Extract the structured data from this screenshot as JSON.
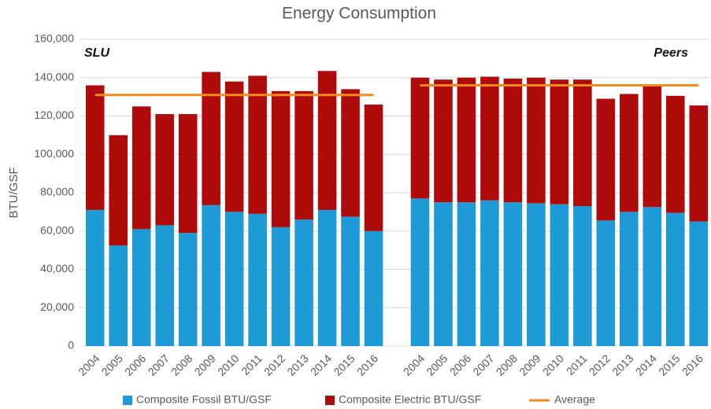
{
  "chart_data": {
    "type": "bar",
    "stacked": true,
    "title": "Energy Consumption",
    "y_label": "BTU/GSF",
    "group_labels": [
      "SLU",
      "Peers"
    ],
    "categories": [
      "2004",
      "2005",
      "2006",
      "2007",
      "2008",
      "2009",
      "2010",
      "2011",
      "2012",
      "2013",
      "2014",
      "2015",
      "2016",
      null,
      "2004",
      "2005",
      "2006",
      "2007",
      "2008",
      "2009",
      "2010",
      "2011",
      "2012",
      "2013",
      "2014",
      "2015",
      "2016"
    ],
    "series": [
      {
        "name": "Composite Fossil BTU/GSF",
        "color": "#1e9ad6",
        "values": [
          71000,
          52500,
          61000,
          63000,
          59000,
          73500,
          70000,
          69000,
          62000,
          66000,
          71000,
          67500,
          60000,
          null,
          77000,
          75000,
          75000,
          76000,
          75000,
          74500,
          74000,
          73000,
          65500,
          70000,
          72500,
          69500,
          65000
        ]
      },
      {
        "name": "Composite Electric BTU/GSF",
        "color": "#b00b0b",
        "values": [
          65000,
          57500,
          64000,
          58000,
          62000,
          69500,
          68000,
          72000,
          71000,
          67000,
          72500,
          66500,
          66000,
          null,
          63000,
          64000,
          65000,
          64500,
          64500,
          65500,
          65000,
          66000,
          63500,
          61500,
          63000,
          61000,
          60500
        ]
      },
      {
        "name": "Average",
        "color": "#f28a1e",
        "type": "line",
        "values": [
          131000,
          131000,
          131000,
          131000,
          131000,
          131000,
          131000,
          131000,
          131000,
          131000,
          131000,
          131000,
          131000,
          null,
          136000,
          136000,
          136000,
          136000,
          136000,
          136000,
          136000,
          136000,
          136000,
          136000,
          136000,
          136000,
          136000
        ]
      }
    ],
    "ylim": [
      0,
      160000
    ],
    "yticks": [
      0,
      {
        "value": 20000,
        "label": "20,000"
      },
      {
        "value": 40000,
        "label": "40,000"
      },
      {
        "value": 60000,
        "label": "60,000"
      },
      {
        "value": 80000,
        "label": "80,000"
      },
      {
        "value": 100000,
        "label": "100,000"
      },
      {
        "value": 120000,
        "label": "120,000"
      },
      {
        "value": 140000,
        "label": "140,000"
      },
      {
        "value": 160000,
        "label": "160,000"
      }
    ],
    "grid": true,
    "legend": "bottom"
  }
}
